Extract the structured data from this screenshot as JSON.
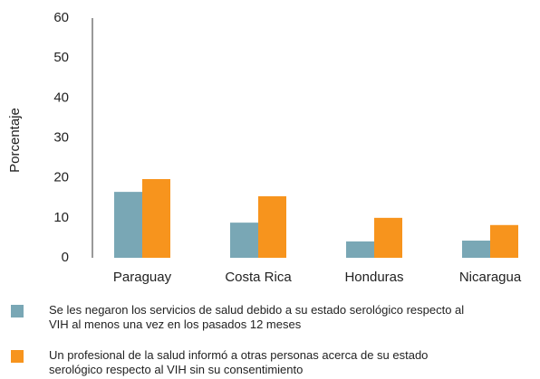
{
  "chart_data": {
    "type": "bar",
    "y_label": "Porcentaje",
    "categories": [
      "Paraguay",
      "Costa Rica",
      "Honduras",
      "Nicaragua"
    ],
    "series": [
      {
        "name": "Se les negaron los servicios de salud debido a su estado serológico respecto al VIH al menos una vez en los pasados 12 meses",
        "color": "#79a7b5",
        "values": [
          16.5,
          8.8,
          4.1,
          4.3
        ]
      },
      {
        "name": "Un profesional de la salud informó a otras personas acerca de su estado serológico respecto al VIH sin su consentimiento",
        "color": "#f7941d",
        "values": [
          19.7,
          15.4,
          10,
          8.2
        ]
      }
    ],
    "ylim": [
      0,
      60
    ],
    "yticks": [
      0,
      10,
      20,
      30,
      40,
      50,
      60
    ],
    "grid": false
  }
}
